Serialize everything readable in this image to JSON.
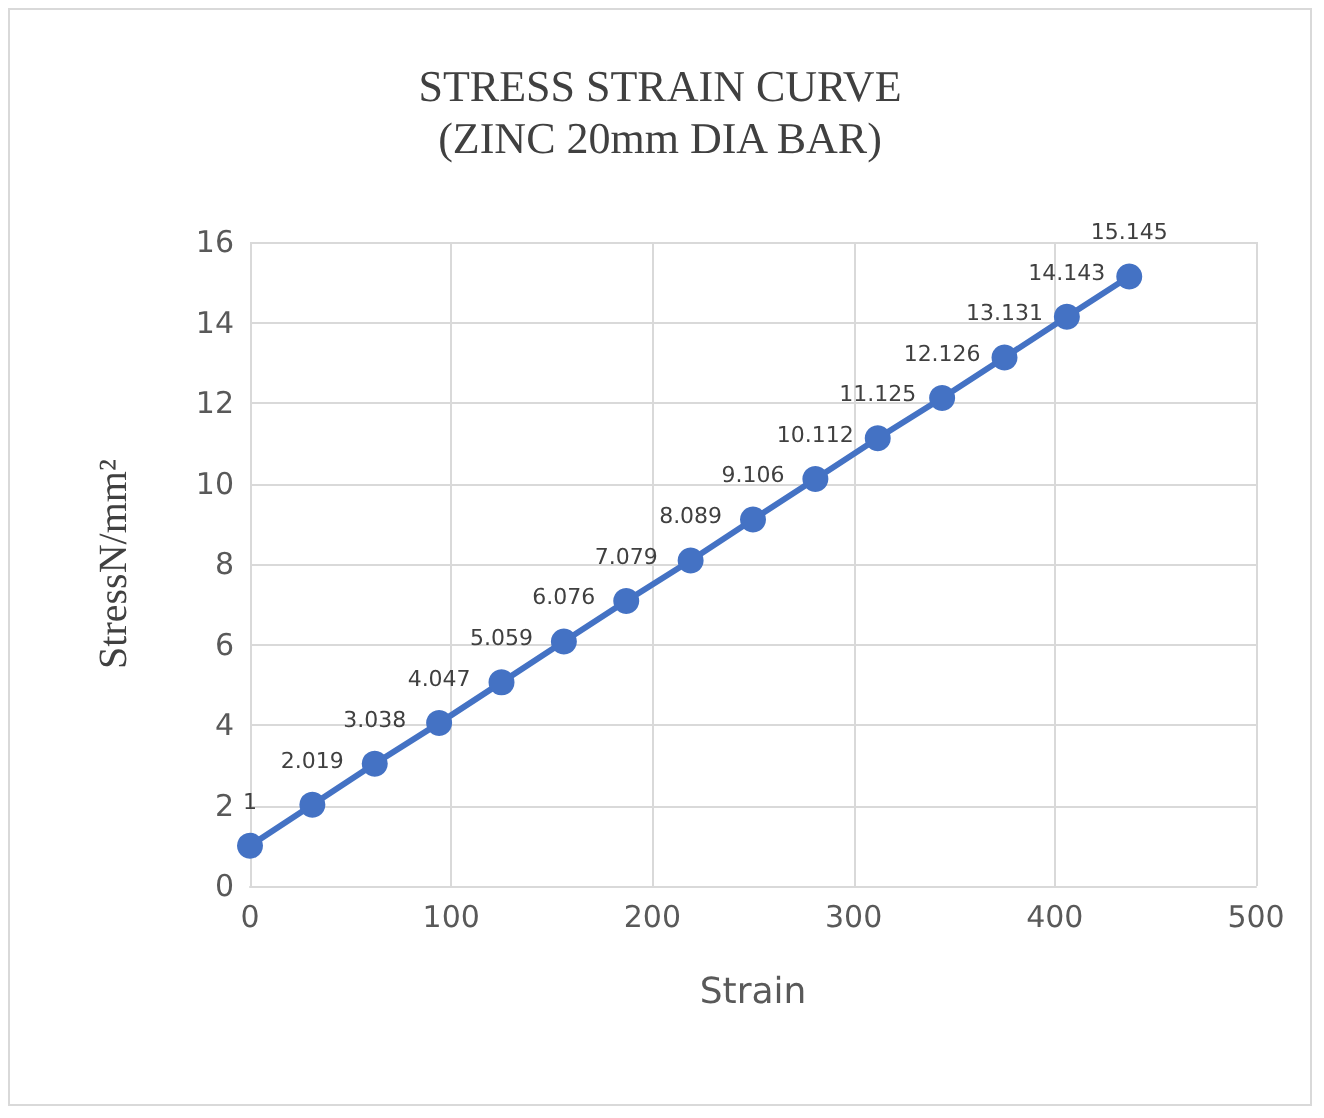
{
  "chart_data": {
    "type": "line",
    "title": "STRESS STRAIN CURVE",
    "subtitle": "(ZINC 20mm DIA BAR)",
    "xlabel": "Strain",
    "ylabel": "StressN/mm²",
    "x": [
      0,
      31,
      62,
      94,
      125,
      156,
      187,
      219,
      250,
      281,
      312,
      344,
      375,
      406,
      437
    ],
    "series": [
      {
        "color": "#4472c4",
        "values": [
          1,
          2.019,
          3.038,
          4.047,
          5.059,
          6.076,
          7.079,
          8.089,
          9.106,
          10.112,
          11.125,
          12.126,
          13.131,
          14.143,
          15.145
        ]
      }
    ],
    "xlim": [
      0,
      500
    ],
    "xticks": [
      0,
      100,
      200,
      300,
      400,
      500
    ],
    "ylim": [
      0,
      16
    ],
    "yticks": [
      0,
      2,
      4,
      6,
      8,
      10,
      12,
      14,
      16
    ],
    "grid": true,
    "marker": "circle",
    "line_style": "solid",
    "data_labels": true
  }
}
